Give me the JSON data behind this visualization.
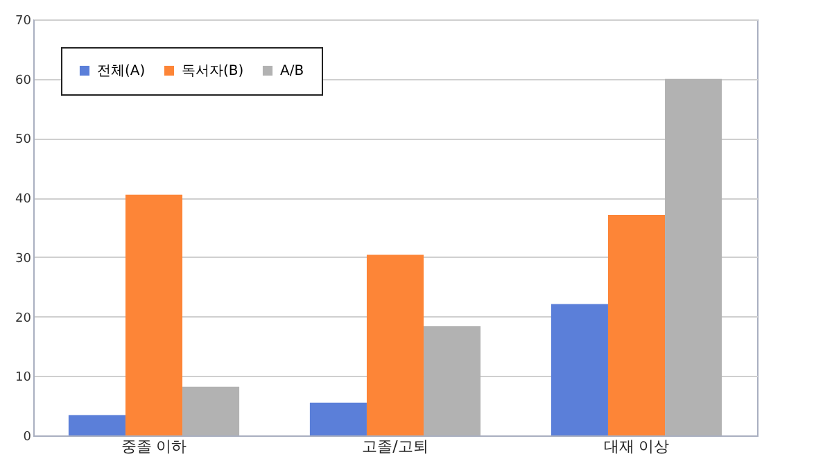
{
  "chart_data": {
    "type": "bar",
    "categories": [
      "중졸 이하",
      "고졸/고퇴",
      "대재 이상"
    ],
    "series": [
      {
        "name": "전체(A)",
        "color": "#5b7fd9",
        "values": [
          3.4,
          5.5,
          22.1
        ]
      },
      {
        "name": "독서자(B)",
        "color": "#fd8537",
        "values": [
          40.5,
          30.4,
          37.1
        ]
      },
      {
        "name": "A/B",
        "color": "#b2b2b2",
        "values": [
          8.2,
          18.4,
          60
        ]
      }
    ],
    "ylim": [
      0,
      70
    ],
    "yticks": [
      0,
      10,
      20,
      30,
      40,
      50,
      60,
      70
    ],
    "grid": "y",
    "legend": "top left"
  }
}
